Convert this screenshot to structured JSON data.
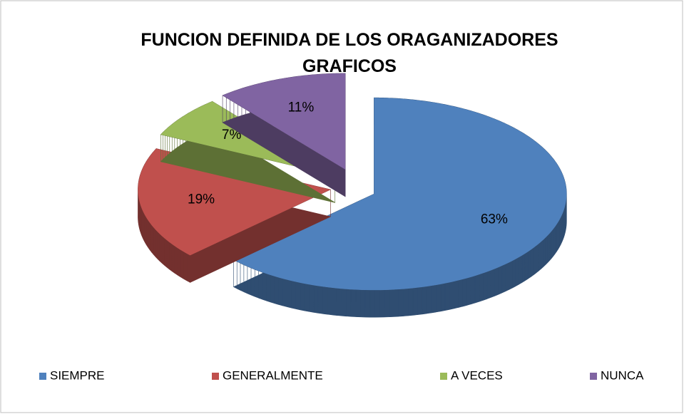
{
  "chart_data": {
    "type": "pie",
    "title": "FUNCION DEFINIDA DE LOS ORAGANIZADORES GRAFICOS",
    "categories": [
      "SIEMPRE",
      "GENERALMENTE",
      "A VECES",
      "NUNCA"
    ],
    "values": [
      63,
      19,
      7,
      11
    ],
    "value_labels": [
      "63%",
      "19%",
      "7%",
      "11%"
    ],
    "colors": [
      "#4f81bd",
      "#c0504d",
      "#9bbb59",
      "#8064a2"
    ],
    "legend": "bottom"
  }
}
